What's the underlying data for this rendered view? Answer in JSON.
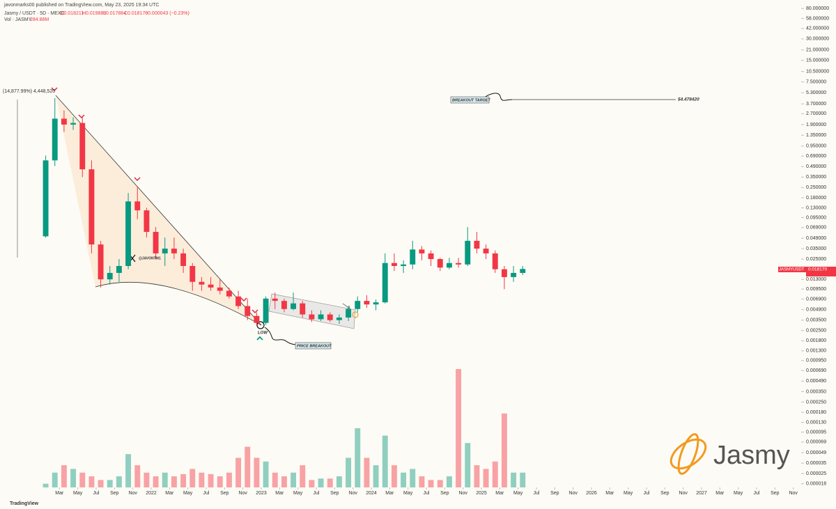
{
  "header": {
    "published": "javonmarks00 published on TradingView.com, May 23, 2025 19:34 UTC",
    "symbol": "Jasmy / USDT · 5D · MEXC",
    "open": "O0.018211",
    "high": "H0.019883",
    "low": "L0.017884",
    "close": "C0.018170",
    "change": "−0.000043 (−0.23%)",
    "volume_label": "Vol · JASMY",
    "volume_value": "284.88M"
  },
  "annotations": {
    "measure": "(14,877.99%) 4,448,520",
    "target": "BREAKOUT TARGET",
    "target_price": "$4.478420",
    "low": "LOW",
    "breakout": "PRICE BREAKOUT",
    "handle": "@JAVONTM1",
    "logo": "Jasmy",
    "brand": "TradingView",
    "symbol_tag": "JASMYUSDT",
    "price_tag": "0.018170"
  },
  "chart_data": {
    "type": "candlestick",
    "log_scale": true,
    "up_color": "#089981",
    "down_color": "#f23645",
    "ylim": [
      1.6e-05,
      105
    ],
    "yticks": [
      {
        "value": 80,
        "label": "80.000000"
      },
      {
        "value": 58,
        "label": "58.000000"
      },
      {
        "value": 42,
        "label": "42.000000"
      },
      {
        "value": 30,
        "label": "30.000000"
      },
      {
        "value": 21,
        "label": "21.000000"
      },
      {
        "value": 15,
        "label": "15.000000"
      },
      {
        "value": 10.5,
        "label": "10.500000"
      },
      {
        "value": 7.5,
        "label": "7.500000"
      },
      {
        "value": 5.3,
        "label": "5.300000"
      },
      {
        "value": 3.7,
        "label": "3.700000"
      },
      {
        "value": 2.7,
        "label": "2.700000"
      },
      {
        "value": 1.9,
        "label": "1.900000"
      },
      {
        "value": 1.35,
        "label": "1.350000"
      },
      {
        "value": 0.95,
        "label": "0.950000"
      },
      {
        "value": 0.69,
        "label": "0.690000"
      },
      {
        "value": 0.49,
        "label": "0.490000"
      },
      {
        "value": 0.35,
        "label": "0.350000"
      },
      {
        "value": 0.25,
        "label": "0.250000"
      },
      {
        "value": 0.18,
        "label": "0.180000"
      },
      {
        "value": 0.13,
        "label": "0.130000"
      },
      {
        "value": 0.095,
        "label": "0.095000"
      },
      {
        "value": 0.069,
        "label": "0.069000"
      },
      {
        "value": 0.049,
        "label": "0.049000"
      },
      {
        "value": 0.035,
        "label": "0.035000"
      },
      {
        "value": 0.025,
        "label": "0.025000"
      },
      {
        "value": 0.013,
        "label": "0.013000"
      },
      {
        "value": 0.0095,
        "label": "0.009500"
      },
      {
        "value": 0.0069,
        "label": "0.006900"
      },
      {
        "value": 0.0049,
        "label": "0.004900"
      },
      {
        "value": 0.0035,
        "label": "0.003500"
      },
      {
        "value": 0.0025,
        "label": "0.002500"
      },
      {
        "value": 0.0018,
        "label": "0.001800"
      },
      {
        "value": 0.0013,
        "label": "0.001300"
      },
      {
        "value": 0.00095,
        "label": "0.000950"
      },
      {
        "value": 0.00069,
        "label": "0.000690"
      },
      {
        "value": 0.00049,
        "label": "0.000490"
      },
      {
        "value": 0.00035,
        "label": "0.000350"
      },
      {
        "value": 0.00025,
        "label": "0.000250"
      },
      {
        "value": 0.00018,
        "label": "0.000180"
      },
      {
        "value": 0.00013,
        "label": "0.000130"
      },
      {
        "value": 9.5e-05,
        "label": "0.000095"
      },
      {
        "value": 6.9e-05,
        "label": "0.000069"
      },
      {
        "value": 4.9e-05,
        "label": "0.000049"
      },
      {
        "value": 3.5e-05,
        "label": "0.000035"
      },
      {
        "value": 2.5e-05,
        "label": "0.000025"
      },
      {
        "value": 1.8e-05,
        "label": "0.000018"
      }
    ],
    "xticks": [
      {
        "value": "2021-03",
        "label": "Mar"
      },
      {
        "value": "2021-05",
        "label": "May"
      },
      {
        "value": "2021-07",
        "label": "Jul"
      },
      {
        "value": "2021-09",
        "label": "Sep"
      },
      {
        "value": "2021-11",
        "label": "Nov"
      },
      {
        "value": "2022-01",
        "label": "2022"
      },
      {
        "value": "2022-03",
        "label": "Mar"
      },
      {
        "value": "2022-05",
        "label": "May"
      },
      {
        "value": "2022-07",
        "label": "Jul"
      },
      {
        "value": "2022-09",
        "label": "Sep"
      },
      {
        "value": "2022-11",
        "label": "Nov"
      },
      {
        "value": "2023-01",
        "label": "2023"
      },
      {
        "value": "2023-03",
        "label": "Mar"
      },
      {
        "value": "2023-05",
        "label": "May"
      },
      {
        "value": "2023-07",
        "label": "Jul"
      },
      {
        "value": "2023-09",
        "label": "Sep"
      },
      {
        "value": "2023-11",
        "label": "Nov"
      },
      {
        "value": "2024-01",
        "label": "2024"
      },
      {
        "value": "2024-03",
        "label": "Mar"
      },
      {
        "value": "2024-05",
        "label": "May"
      },
      {
        "value": "2024-07",
        "label": "Jul"
      },
      {
        "value": "2024-09",
        "label": "Sep"
      },
      {
        "value": "2024-11",
        "label": "Nov"
      },
      {
        "value": "2025-01",
        "label": "2025"
      },
      {
        "value": "2025-03",
        "label": "Mar"
      },
      {
        "value": "2025-05",
        "label": "May"
      },
      {
        "value": "2025-07",
        "label": "Jul"
      },
      {
        "value": "2025-09",
        "label": "Sep"
      },
      {
        "value": "2025-11",
        "label": "Nov"
      },
      {
        "value": "2026-01",
        "label": "2026"
      },
      {
        "value": "2026-03",
        "label": "Mar"
      },
      {
        "value": "2026-05",
        "label": "May"
      },
      {
        "value": "2026-07",
        "label": "Jul"
      },
      {
        "value": "2026-09",
        "label": "Sep"
      },
      {
        "value": "2026-11",
        "label": "Nov"
      },
      {
        "value": "2027-01",
        "label": "2027"
      },
      {
        "value": "2027-03",
        "label": "Mar"
      },
      {
        "value": "2027-05",
        "label": "May"
      },
      {
        "value": "2027-07",
        "label": "Jul"
      },
      {
        "value": "2027-09",
        "label": "Sep"
      },
      {
        "value": "2027-11",
        "label": "Nov"
      }
    ],
    "candles": [
      {
        "x": "2021-01",
        "open": 0.052,
        "high": 0.7,
        "low": 0.05,
        "close": 0.6
      },
      {
        "x": "2021-02",
        "open": 0.6,
        "high": 4.45,
        "low": 0.5,
        "close": 2.3
      },
      {
        "x": "2021-03",
        "open": 2.3,
        "high": 3.0,
        "low": 1.5,
        "close": 1.9
      },
      {
        "x": "2021-04",
        "open": 1.9,
        "high": 2.4,
        "low": 1.6,
        "close": 2.0
      },
      {
        "x": "2021-05",
        "open": 2.0,
        "high": 2.4,
        "low": 0.35,
        "close": 0.45
      },
      {
        "x": "2021-06",
        "open": 0.45,
        "high": 0.6,
        "low": 0.03,
        "close": 0.04
      },
      {
        "x": "2021-07",
        "open": 0.04,
        "high": 0.045,
        "low": 0.01,
        "close": 0.013
      },
      {
        "x": "2021-08",
        "open": 0.013,
        "high": 0.02,
        "low": 0.011,
        "close": 0.016
      },
      {
        "x": "2021-09",
        "open": 0.016,
        "high": 0.025,
        "low": 0.012,
        "close": 0.02
      },
      {
        "x": "2021-10",
        "open": 0.02,
        "high": 0.21,
        "low": 0.018,
        "close": 0.16
      },
      {
        "x": "2021-11",
        "open": 0.16,
        "high": 0.26,
        "low": 0.09,
        "close": 0.12
      },
      {
        "x": "2021-12",
        "open": 0.12,
        "high": 0.13,
        "low": 0.05,
        "close": 0.06
      },
      {
        "x": "2022-01",
        "open": 0.06,
        "high": 0.07,
        "low": 0.025,
        "close": 0.03
      },
      {
        "x": "2022-02",
        "open": 0.03,
        "high": 0.05,
        "low": 0.02,
        "close": 0.035
      },
      {
        "x": "2022-03",
        "open": 0.035,
        "high": 0.05,
        "low": 0.025,
        "close": 0.03
      },
      {
        "x": "2022-04",
        "open": 0.03,
        "high": 0.035,
        "low": 0.016,
        "close": 0.02
      },
      {
        "x": "2022-05",
        "open": 0.02,
        "high": 0.022,
        "low": 0.009,
        "close": 0.012
      },
      {
        "x": "2022-06",
        "open": 0.012,
        "high": 0.014,
        "low": 0.009,
        "close": 0.011
      },
      {
        "x": "2022-07",
        "open": 0.011,
        "high": 0.014,
        "low": 0.009,
        "close": 0.01
      },
      {
        "x": "2022-08",
        "open": 0.01,
        "high": 0.013,
        "low": 0.008,
        "close": 0.009
      },
      {
        "x": "2022-09",
        "open": 0.009,
        "high": 0.01,
        "low": 0.007,
        "close": 0.0075
      },
      {
        "x": "2022-10",
        "open": 0.0075,
        "high": 0.009,
        "low": 0.005,
        "close": 0.0055
      },
      {
        "x": "2022-11",
        "open": 0.0055,
        "high": 0.007,
        "low": 0.0035,
        "close": 0.004
      },
      {
        "x": "2022-12",
        "open": 0.004,
        "high": 0.0045,
        "low": 0.0029,
        "close": 0.0032
      },
      {
        "x": "2023-01",
        "open": 0.0032,
        "high": 0.0075,
        "low": 0.003,
        "close": 0.007
      },
      {
        "x": "2023-02",
        "open": 0.007,
        "high": 0.0085,
        "low": 0.005,
        "close": 0.0065
      },
      {
        "x": "2023-03",
        "open": 0.0065,
        "high": 0.007,
        "low": 0.0045,
        "close": 0.005
      },
      {
        "x": "2023-04",
        "open": 0.005,
        "high": 0.0085,
        "low": 0.0048,
        "close": 0.006
      },
      {
        "x": "2023-05",
        "open": 0.006,
        "high": 0.0065,
        "low": 0.0038,
        "close": 0.0042
      },
      {
        "x": "2023-06",
        "open": 0.0042,
        "high": 0.0048,
        "low": 0.0033,
        "close": 0.0036
      },
      {
        "x": "2023-07",
        "open": 0.0036,
        "high": 0.0048,
        "low": 0.0034,
        "close": 0.0042
      },
      {
        "x": "2023-08",
        "open": 0.0042,
        "high": 0.0045,
        "low": 0.0033,
        "close": 0.0035
      },
      {
        "x": "2023-09",
        "open": 0.0035,
        "high": 0.0042,
        "low": 0.0031,
        "close": 0.0038
      },
      {
        "x": "2023-10",
        "open": 0.0038,
        "high": 0.0055,
        "low": 0.0034,
        "close": 0.005
      },
      {
        "x": "2023-11",
        "open": 0.005,
        "high": 0.0075,
        "low": 0.0045,
        "close": 0.0065
      },
      {
        "x": "2023-12",
        "open": 0.0065,
        "high": 0.0078,
        "low": 0.0052,
        "close": 0.0058
      },
      {
        "x": "2024-01",
        "open": 0.0058,
        "high": 0.0068,
        "low": 0.0048,
        "close": 0.0062
      },
      {
        "x": "2024-02",
        "open": 0.0062,
        "high": 0.03,
        "low": 0.006,
        "close": 0.022
      },
      {
        "x": "2024-03",
        "open": 0.022,
        "high": 0.03,
        "low": 0.017,
        "close": 0.02
      },
      {
        "x": "2024-04",
        "open": 0.02,
        "high": 0.024,
        "low": 0.016,
        "close": 0.021
      },
      {
        "x": "2024-05",
        "open": 0.021,
        "high": 0.045,
        "low": 0.018,
        "close": 0.034
      },
      {
        "x": "2024-06",
        "open": 0.034,
        "high": 0.038,
        "low": 0.024,
        "close": 0.03
      },
      {
        "x": "2024-07",
        "open": 0.03,
        "high": 0.033,
        "low": 0.02,
        "close": 0.025
      },
      {
        "x": "2024-08",
        "open": 0.025,
        "high": 0.026,
        "low": 0.017,
        "close": 0.019
      },
      {
        "x": "2024-09",
        "open": 0.019,
        "high": 0.026,
        "low": 0.018,
        "close": 0.022
      },
      {
        "x": "2024-10",
        "open": 0.022,
        "high": 0.026,
        "low": 0.019,
        "close": 0.021
      },
      {
        "x": "2024-11",
        "open": 0.021,
        "high": 0.07,
        "low": 0.02,
        "close": 0.045
      },
      {
        "x": "2024-12",
        "open": 0.045,
        "high": 0.06,
        "low": 0.03,
        "close": 0.035
      },
      {
        "x": "2025-01",
        "open": 0.035,
        "high": 0.04,
        "low": 0.025,
        "close": 0.03
      },
      {
        "x": "2025-02",
        "open": 0.03,
        "high": 0.033,
        "low": 0.016,
        "close": 0.018
      },
      {
        "x": "2025-03",
        "open": 0.018,
        "high": 0.02,
        "low": 0.0095,
        "close": 0.014
      },
      {
        "x": "2025-04",
        "open": 0.014,
        "high": 0.02,
        "low": 0.012,
        "close": 0.016
      },
      {
        "x": "2025-05",
        "open": 0.016,
        "high": 0.02,
        "low": 0.015,
        "close": 0.01817
      }
    ],
    "volume": [
      5,
      20,
      30,
      25,
      20,
      15,
      10,
      10,
      15,
      45,
      30,
      20,
      15,
      20,
      15,
      18,
      25,
      20,
      18,
      15,
      20,
      40,
      55,
      40,
      35,
      20,
      15,
      20,
      30,
      10,
      12,
      12,
      15,
      40,
      80,
      40,
      30,
      70,
      30,
      20,
      25,
      15,
      10,
      10,
      15,
      160,
      60,
      30,
      25,
      35,
      100,
      20,
      20
    ]
  }
}
